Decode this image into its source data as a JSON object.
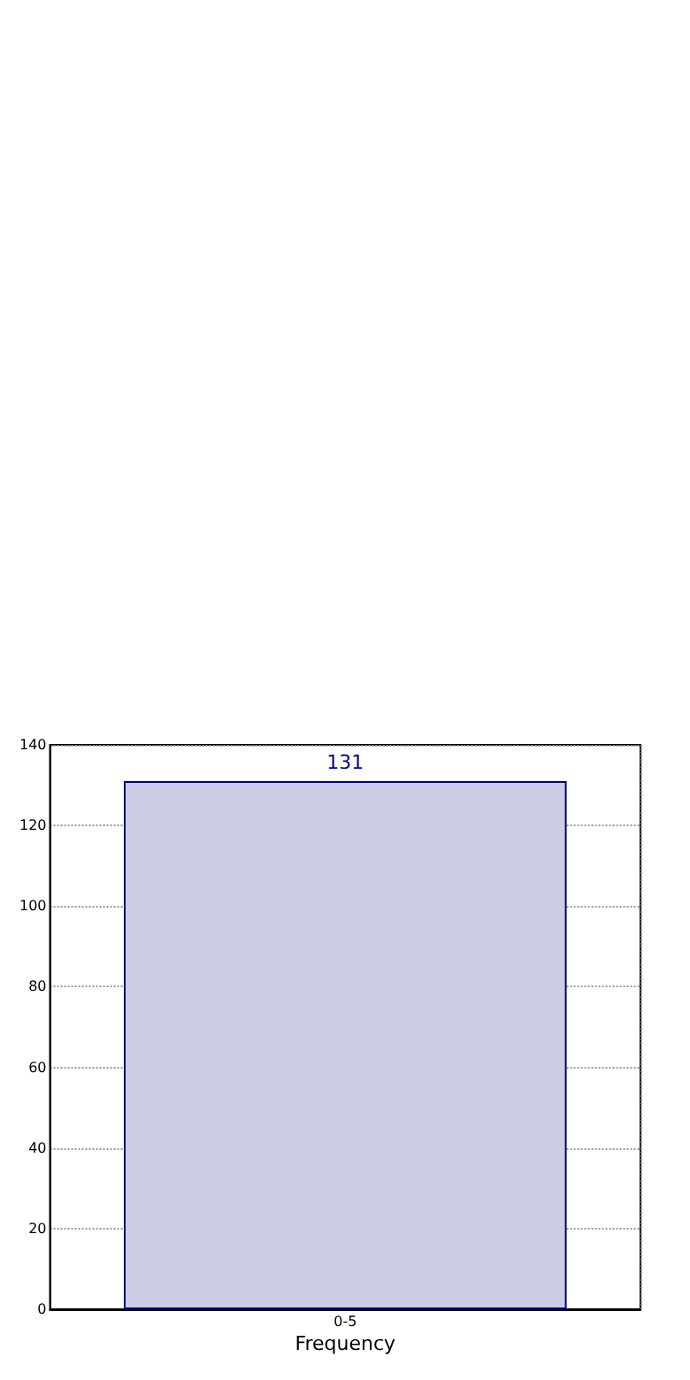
{
  "chart_data": {
    "type": "bar",
    "xlabel": "Frequency",
    "categories": [
      "0-5"
    ],
    "values": [
      131
    ],
    "color": "#cccce5",
    "ylim": [
      0,
      140
    ],
    "yticks": [
      0,
      20,
      40,
      60,
      80,
      100,
      120,
      140
    ],
    "grid": true,
    "data_labels": true
  }
}
